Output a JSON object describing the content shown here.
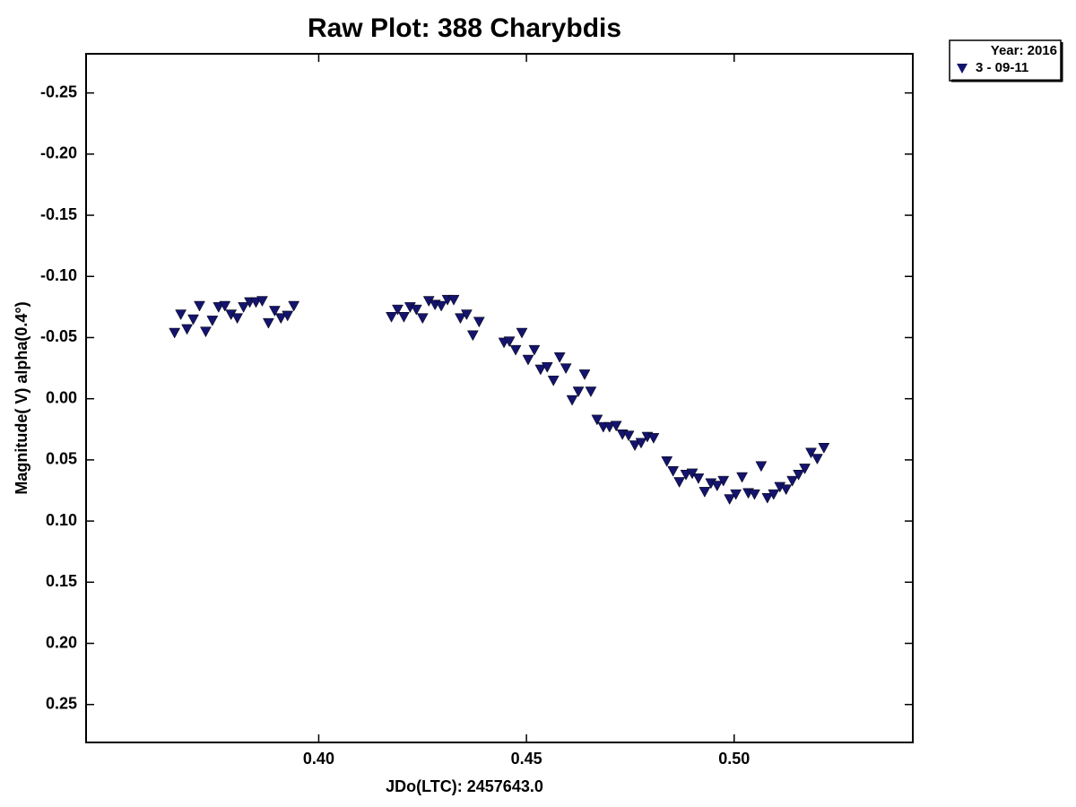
{
  "chart_data": {
    "type": "scatter",
    "title": "Raw Plot: 388 Charybdis",
    "x_label": "JDo(LTC): 2457643.0",
    "y_label": "Magnitude( V) alpha(0.4°)",
    "legend_title": "Year: 2016",
    "legend": "top-right-outside",
    "y_inverted": true,
    "xlim": [
      0.344,
      0.543
    ],
    "ylim": [
      -0.282,
      0.281
    ],
    "xticks": [
      {
        "value": 0.4,
        "label": "0.40"
      },
      0.45,
      {
        "value": 0.5,
        "label": "0.50"
      }
    ],
    "yticks": [
      -0.25,
      {
        "value": -0.2,
        "label": "-0.20"
      },
      -0.15,
      {
        "value": -0.1,
        "label": "-0.10"
      },
      -0.05,
      {
        "value": 0.0,
        "label": "0.00"
      },
      0.05,
      {
        "value": 0.1,
        "label": "0.10"
      },
      0.15,
      {
        "value": 0.2,
        "label": "0.20"
      },
      0.25
    ],
    "x": [
      0.3653,
      0.3668,
      0.3683,
      0.3698,
      0.3713,
      0.3728,
      0.3744,
      0.3759,
      0.3774,
      0.3789,
      0.3804,
      0.3819,
      0.3834,
      0.3849,
      0.3864,
      0.3879,
      0.3894,
      0.3909,
      0.3925,
      0.394,
      0.4175,
      0.419,
      0.4205,
      0.422,
      0.4235,
      0.425,
      0.4265,
      0.428,
      0.4295,
      0.431,
      0.4325,
      0.4341,
      0.4356,
      0.4371,
      0.4386,
      0.4446,
      0.4459,
      0.4474,
      0.4489,
      0.4504,
      0.4519,
      0.4534,
      0.455,
      0.4565,
      0.458,
      0.4595,
      0.461,
      0.4625,
      0.464,
      0.4655,
      0.467,
      0.4685,
      0.47,
      0.4716,
      0.4731,
      0.4746,
      0.4761,
      0.4776,
      0.4791,
      0.4806,
      0.4838,
      0.4853,
      0.4868,
      0.4884,
      0.4899,
      0.4914,
      0.4929,
      0.4944,
      0.4959,
      0.4974,
      0.4989,
      0.5004,
      0.5019,
      0.5034,
      0.5049,
      0.5065,
      0.508,
      0.5095,
      0.511,
      0.5125,
      0.514,
      0.5155,
      0.517,
      0.5185,
      0.52,
      0.5216
    ],
    "series": [
      {
        "name": "3 - 09-11",
        "color": "#14146e",
        "values": [
          -0.054,
          -0.069,
          -0.057,
          -0.065,
          -0.076,
          -0.055,
          -0.064,
          -0.075,
          -0.076,
          -0.069,
          -0.066,
          -0.075,
          -0.079,
          -0.079,
          -0.08,
          -0.062,
          -0.072,
          -0.066,
          -0.068,
          -0.076,
          -0.067,
          -0.073,
          -0.067,
          -0.075,
          -0.073,
          -0.066,
          -0.08,
          -0.077,
          -0.076,
          -0.081,
          -0.081,
          -0.066,
          -0.069,
          -0.052,
          -0.063,
          -0.046,
          -0.047,
          -0.04,
          -0.054,
          -0.032,
          -0.04,
          -0.024,
          -0.026,
          -0.015,
          -0.034,
          -0.025,
          0.001,
          -0.006,
          -0.02,
          -0.006,
          0.017,
          0.023,
          0.023,
          0.022,
          0.029,
          0.03,
          0.038,
          0.036,
          0.031,
          0.032,
          0.051,
          0.059,
          0.068,
          0.062,
          0.061,
          0.065,
          0.076,
          0.069,
          0.071,
          0.067,
          0.082,
          0.078,
          0.064,
          0.077,
          0.078,
          0.055,
          0.081,
          0.078,
          0.072,
          0.074,
          0.067,
          0.062,
          0.057,
          0.044,
          0.049,
          0.04
        ]
      }
    ]
  }
}
